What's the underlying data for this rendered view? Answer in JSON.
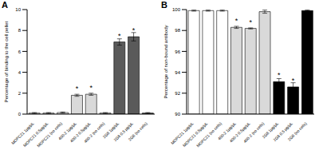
{
  "chart_data": [
    {
      "type": "bar",
      "title": "A",
      "ylabel": "Percentage of binding to the cell pellet",
      "categories": [
        "MOPC21 1μg/μL",
        "MOPC21 0.5μg/μL",
        "MOPC21 (no cells)",
        "400-2 1μg/μL",
        "400-2 0.5μg/μL",
        "400-2 (no cells)",
        "2G8 1μg/μL",
        "2G8 0.5 μg/μL",
        "2G8 (no cells)"
      ],
      "values": [
        0.1,
        0.1,
        0.15,
        1.8,
        1.9,
        0.1,
        6.9,
        7.4,
        0.1
      ],
      "errors": [
        0.05,
        0.05,
        0.05,
        0.1,
        0.1,
        0.05,
        0.3,
        0.4,
        0.05
      ],
      "annotations": [
        null,
        null,
        null,
        "*",
        "*",
        null,
        "*",
        "*",
        null
      ],
      "colors": [
        "#ffffff",
        "#ffffff",
        "#ffffff",
        "#d9d9d9",
        "#d9d9d9",
        "#d9d9d9",
        "#5a5a5a",
        "#5a5a5a",
        "#5a5a5a"
      ],
      "ylim": [
        0,
        10
      ],
      "yticks": [
        0,
        2,
        4,
        6,
        8,
        10
      ]
    },
    {
      "type": "bar",
      "title": "B",
      "ylabel": "Percentage of non-bound antibody",
      "categories": [
        "MOPC21 1μg/μL",
        "MOPC21 0.5μg/μL",
        "MOPC21 (no cells)",
        "400-2 1μg/μL",
        "400-2 0.5μg/μL",
        "400-2 (no cells)",
        "2G8 1μg/μL",
        "2G8 0.5 μg/μL",
        "2G8 (no cells)"
      ],
      "values": [
        99.9,
        99.9,
        99.9,
        98.3,
        98.2,
        99.8,
        93.1,
        92.6,
        99.9
      ],
      "errors": [
        0.05,
        0.05,
        0.05,
        0.1,
        0.05,
        0.15,
        0.3,
        0.4,
        0.05
      ],
      "annotations": [
        null,
        null,
        null,
        "*",
        "*",
        null,
        "*",
        "*",
        null
      ],
      "colors": [
        "#ffffff",
        "#ffffff",
        "#ffffff",
        "#d9d9d9",
        "#d9d9d9",
        "#d9d9d9",
        "#000000",
        "#000000",
        "#000000"
      ],
      "ylim": [
        90,
        100
      ],
      "yticks": [
        90,
        92,
        94,
        96,
        98,
        100
      ]
    }
  ]
}
